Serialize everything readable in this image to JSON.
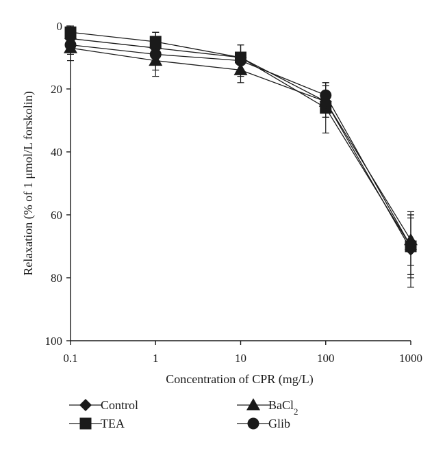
{
  "chart_data": {
    "type": "line",
    "xlabel": "Concentration of CPR (mg/L)",
    "ylabel": "Relaxation (% of 1 μmol/L forskolin)",
    "xscale": "log",
    "x": [
      0.1,
      1,
      10,
      100,
      1000
    ],
    "x_tick_labels": [
      "0.1",
      "1",
      "10",
      "100",
      "1000"
    ],
    "xlim": [
      0.1,
      1000
    ],
    "ylim": [
      0,
      100
    ],
    "y_inverted": true,
    "y_ticks": [
      0,
      20,
      40,
      60,
      80,
      100
    ],
    "grid": false,
    "legend_position": "bottom",
    "series": [
      {
        "name": "Control",
        "marker": "diamond",
        "values": [
          4,
          7,
          10,
          24,
          71
        ],
        "errors": [
          3,
          5,
          4,
          5,
          12
        ]
      },
      {
        "name": "TEA",
        "marker": "square",
        "values": [
          2,
          5,
          10,
          26,
          70
        ],
        "errors": [
          2,
          3,
          4,
          8,
          9
        ]
      },
      {
        "name": "BaCl2",
        "marker": "triangle",
        "values": [
          7,
          11,
          14,
          24,
          68
        ],
        "errors": [
          4,
          5,
          4,
          5,
          8
        ]
      },
      {
        "name": "Glib",
        "marker": "circle",
        "values": [
          6,
          9,
          11,
          22,
          70
        ],
        "errors": [
          3,
          5,
          5,
          4,
          10
        ]
      }
    ]
  },
  "legend": {
    "items": [
      {
        "label": "Control",
        "marker": "diamond"
      },
      {
        "label": "TEA",
        "marker": "square"
      },
      {
        "label": "BaCl",
        "sub": "2",
        "marker": "triangle"
      },
      {
        "label": "Glib",
        "marker": "circle"
      }
    ]
  }
}
